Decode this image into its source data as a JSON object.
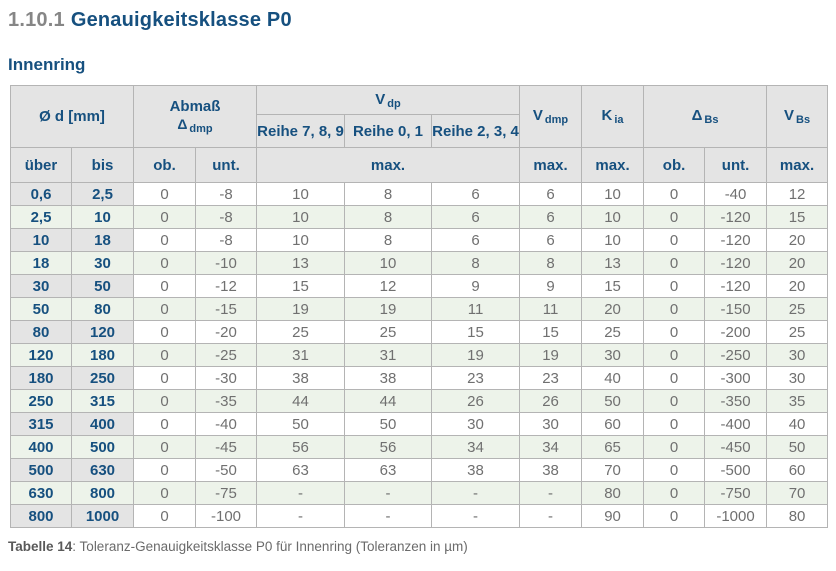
{
  "page": {
    "title_number": "1.10.1",
    "title_text": "Genauigkeitsklasse P0",
    "section_title": "Innenring",
    "caption_label": "Tabelle 14",
    "caption_text": ": Toleranz-Genauigkeitsklasse P0 für Innenring (Toleranzen in µm)"
  },
  "colors": {
    "accent_blue": "#16507f",
    "header_bg": "#e4e4e4",
    "stripe_green": "#edf3ea",
    "data_text_gray": "#707070",
    "title_number_gray": "#868686"
  },
  "table": {
    "groups": {
      "diameter": "Ø d  [mm]",
      "abmass": {
        "line1": "Abmaß",
        "main": "Δ",
        "sub": "dmp"
      },
      "vdp": {
        "main": "V",
        "sub": "dp"
      },
      "vdmp": {
        "main": "V",
        "sub": "dmp"
      },
      "kia": {
        "main": "K",
        "sub": "ia"
      },
      "dbs": {
        "main": "Δ",
        "sub": "Bs"
      },
      "vbs": {
        "main": "V",
        "sub": "Bs"
      }
    },
    "reihe_labels": [
      "Reihe 7, 8, 9",
      "Reihe 0, 1",
      "Reihe 2, 3, 4"
    ],
    "sub_headers": {
      "ueber": "über",
      "bis": "bis",
      "ob1": "ob.",
      "unt1": "unt.",
      "max_vdp": "max.",
      "max_vdmp": "max.",
      "max_kia": "max.",
      "ob2": "ob.",
      "unt2": "unt.",
      "max_vbs": "max."
    },
    "rows": [
      [
        "0,6",
        "2,5",
        "0",
        "-8",
        "10",
        "8",
        "6",
        "6",
        "10",
        "0",
        "-40",
        "12"
      ],
      [
        "2,5",
        "10",
        "0",
        "-8",
        "10",
        "8",
        "6",
        "6",
        "10",
        "0",
        "-120",
        "15"
      ],
      [
        "10",
        "18",
        "0",
        "-8",
        "10",
        "8",
        "6",
        "6",
        "10",
        "0",
        "-120",
        "20"
      ],
      [
        "18",
        "30",
        "0",
        "-10",
        "13",
        "10",
        "8",
        "8",
        "13",
        "0",
        "-120",
        "20"
      ],
      [
        "30",
        "50",
        "0",
        "-12",
        "15",
        "12",
        "9",
        "9",
        "15",
        "0",
        "-120",
        "20"
      ],
      [
        "50",
        "80",
        "0",
        "-15",
        "19",
        "19",
        "11",
        "11",
        "20",
        "0",
        "-150",
        "25"
      ],
      [
        "80",
        "120",
        "0",
        "-20",
        "25",
        "25",
        "15",
        "15",
        "25",
        "0",
        "-200",
        "25"
      ],
      [
        "120",
        "180",
        "0",
        "-25",
        "31",
        "31",
        "19",
        "19",
        "30",
        "0",
        "-250",
        "30"
      ],
      [
        "180",
        "250",
        "0",
        "-30",
        "38",
        "38",
        "23",
        "23",
        "40",
        "0",
        "-300",
        "30"
      ],
      [
        "250",
        "315",
        "0",
        "-35",
        "44",
        "44",
        "26",
        "26",
        "50",
        "0",
        "-350",
        "35"
      ],
      [
        "315",
        "400",
        "0",
        "-40",
        "50",
        "50",
        "30",
        "30",
        "60",
        "0",
        "-400",
        "40"
      ],
      [
        "400",
        "500",
        "0",
        "-45",
        "56",
        "56",
        "34",
        "34",
        "65",
        "0",
        "-450",
        "50"
      ],
      [
        "500",
        "630",
        "0",
        "-50",
        "63",
        "63",
        "38",
        "38",
        "70",
        "0",
        "-500",
        "60"
      ],
      [
        "630",
        "800",
        "0",
        "-75",
        "-",
        "-",
        "-",
        "-",
        "80",
        "0",
        "-750",
        "70"
      ],
      [
        "800",
        "1000",
        "0",
        "-100",
        "-",
        "-",
        "-",
        "-",
        "90",
        "0",
        "-1000",
        "80"
      ]
    ]
  }
}
